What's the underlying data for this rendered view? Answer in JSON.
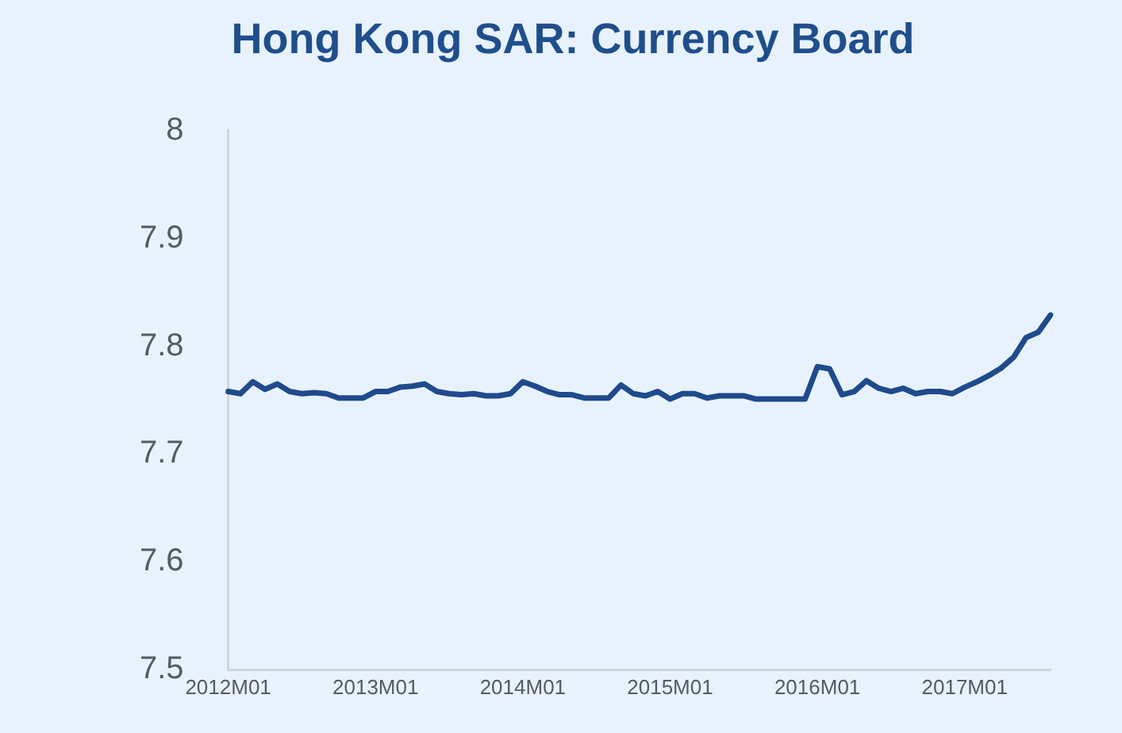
{
  "chart_data": {
    "type": "line",
    "title": "Hong Kong SAR: Currency Board",
    "categories": [
      "2012M01",
      null,
      null,
      null,
      null,
      null,
      null,
      null,
      null,
      null,
      null,
      null,
      "2013M01",
      null,
      null,
      null,
      null,
      null,
      null,
      null,
      null,
      null,
      null,
      null,
      "2014M01",
      null,
      null,
      null,
      null,
      null,
      null,
      null,
      null,
      null,
      null,
      null,
      "2015M01",
      null,
      null,
      null,
      null,
      null,
      null,
      null,
      null,
      null,
      null,
      null,
      "2016M01",
      null,
      null,
      null,
      null,
      null,
      null,
      null,
      null,
      null,
      null,
      null,
      "2017M01",
      null,
      null,
      null,
      null,
      null,
      null,
      null
    ],
    "series": [
      {
        "color": "#1f4a8c",
        "values": [
          7.758,
          7.756,
          7.767,
          7.76,
          7.765,
          7.758,
          7.756,
          7.757,
          7.756,
          7.752,
          7.752,
          7.752,
          7.758,
          7.758,
          7.762,
          7.763,
          7.765,
          7.758,
          7.756,
          7.755,
          7.756,
          7.754,
          7.754,
          7.756,
          7.767,
          7.763,
          7.758,
          7.755,
          7.755,
          7.752,
          7.752,
          7.752,
          7.764,
          7.756,
          7.754,
          7.758,
          7.751,
          7.756,
          7.756,
          7.752,
          7.754,
          7.754,
          7.754,
          7.751,
          7.751,
          7.751,
          7.751,
          7.751,
          7.781,
          7.779,
          7.755,
          7.758,
          7.768,
          7.761,
          7.758,
          7.761,
          7.756,
          7.758,
          7.758,
          7.756,
          7.762,
          7.767,
          7.773,
          7.78,
          7.79,
          7.808,
          7.813,
          7.829
        ]
      }
    ],
    "ylim": [
      7.5,
      8
    ],
    "yticks": [
      7.5,
      7.6,
      7.7,
      7.8,
      7.9,
      8
    ],
    "grid": false,
    "legend": false,
    "marker": "none",
    "line_style": "solid"
  }
}
